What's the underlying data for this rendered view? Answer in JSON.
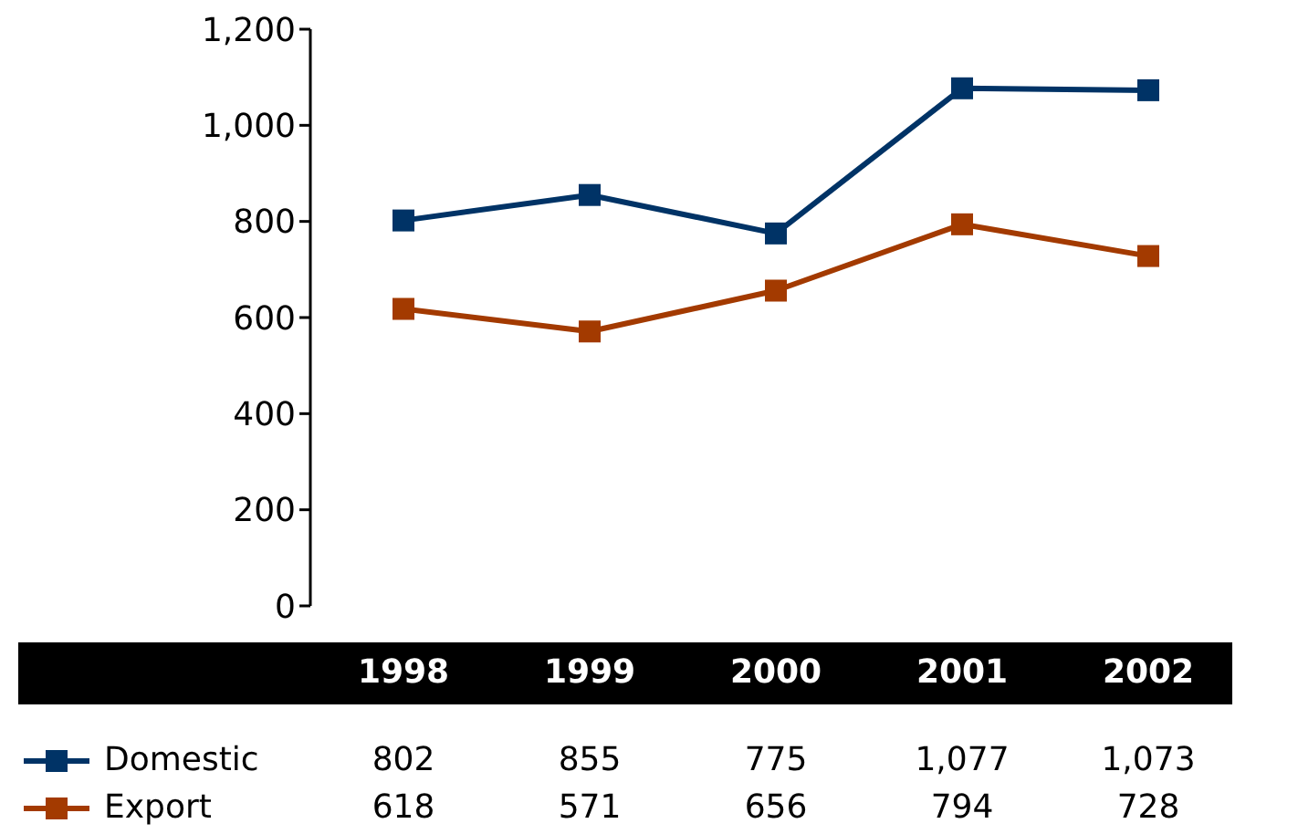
{
  "chart_data": {
    "type": "line",
    "categories": [
      "1998",
      "1999",
      "2000",
      "2001",
      "2002"
    ],
    "ylim": [
      0,
      1200
    ],
    "yticks": [
      0,
      {
        "value": 200,
        "label": "200"
      },
      {
        "value": 400,
        "label": "400"
      },
      {
        "value": 600,
        "label": "600"
      },
      {
        "value": 800,
        "label": "800"
      },
      {
        "value": 1000,
        "label": "1,000"
      },
      {
        "value": 1200,
        "label": "1,200"
      }
    ],
    "series": [
      {
        "name": "Domestic",
        "color": "#003366",
        "values": [
          802,
          855,
          775,
          1077,
          1073
        ],
        "value_labels": [
          "802",
          "855",
          "775",
          "1,077",
          "1,073"
        ]
      },
      {
        "name": "Export",
        "color": "#a33a00",
        "values": [
          618,
          571,
          656,
          794,
          728
        ],
        "value_labels": [
          "618",
          "571",
          "656",
          "794",
          "728"
        ]
      }
    ],
    "marker": "square",
    "legend": "bottom",
    "grid": false
  }
}
